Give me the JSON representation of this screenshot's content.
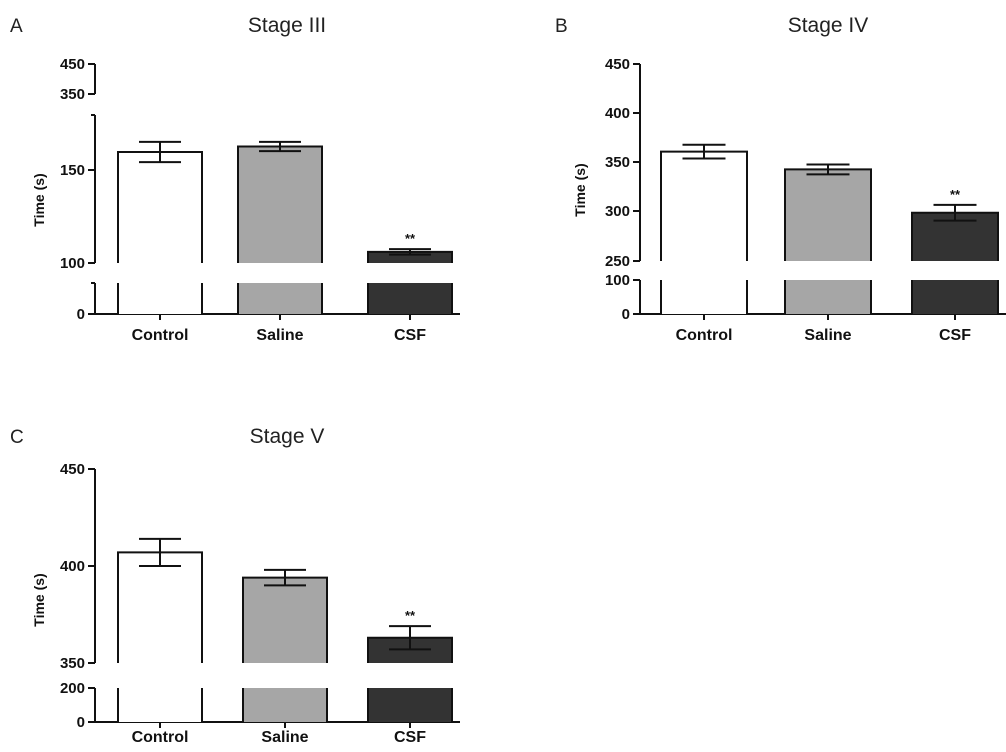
{
  "chart_data": [
    {
      "type": "bar",
      "panel": "A",
      "title": "Stage III",
      "ylabel": "Time (s)",
      "categories": [
        "Control",
        "Saline",
        "CSF"
      ],
      "values": [
        160,
        163,
        106
      ],
      "errors": [
        5.5,
        2.5,
        1.5
      ],
      "significance": [
        "",
        "",
        "**"
      ],
      "colors": [
        "#ffffff",
        "#a6a6a6",
        "#333333"
      ],
      "lower_segment": {
        "range": [
          0,
          50
        ],
        "ticks": [
          "0"
        ]
      },
      "upper_segment": {
        "range": [
          100,
          180
        ],
        "ticks": [
          "100",
          "150"
        ]
      },
      "top_segment": {
        "range": [
          350,
          450
        ],
        "ticks": [
          "350",
          "450"
        ]
      }
    },
    {
      "type": "bar",
      "panel": "B",
      "title": "Stage IV",
      "ylabel": "Time (s)",
      "categories": [
        "Control",
        "Saline",
        "CSF"
      ],
      "values": [
        361,
        343,
        299
      ],
      "errors": [
        7,
        5,
        8
      ],
      "significance": [
        "",
        "",
        "**"
      ],
      "colors": [
        "#ffffff",
        "#a6a6a6",
        "#333333"
      ],
      "lower_segment": {
        "range": [
          0,
          100
        ],
        "ticks": [
          "0",
          "100"
        ]
      },
      "upper_segment": {
        "range": [
          250,
          450
        ],
        "ticks": [
          "250",
          "300",
          "350",
          "400",
          "450"
        ]
      }
    },
    {
      "type": "bar",
      "panel": "C",
      "title": "Stage V",
      "ylabel": "Time (s)",
      "categories": [
        "Control",
        "Saline",
        "CSF"
      ],
      "values": [
        407,
        394,
        363
      ],
      "errors": [
        7,
        4,
        6
      ],
      "significance": [
        "",
        "",
        "**"
      ],
      "colors": [
        "#ffffff",
        "#a6a6a6",
        "#333333"
      ],
      "lower_segment": {
        "range": [
          0,
          200
        ],
        "ticks": [
          "0",
          "200"
        ]
      },
      "upper_segment": {
        "range": [
          350,
          450
        ],
        "ticks": [
          "350",
          "400",
          "450"
        ]
      }
    }
  ]
}
